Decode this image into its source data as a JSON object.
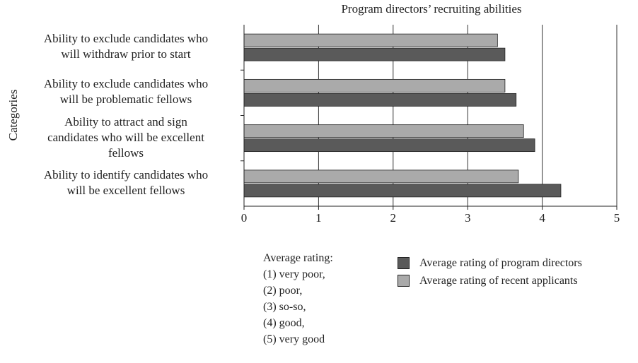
{
  "chart_data": {
    "type": "bar",
    "orientation": "horizontal",
    "title": "Program directors’ recruiting abilities",
    "ylabel": "Categories",
    "categories": [
      "Ability to exclude candidates who\nwill withdraw prior to start",
      "Ability to exclude candidates who\nwill be problematic fellows",
      "Ability to attract and sign\ncandidates who will be excellent\nfellows",
      "Ability to identify candidates who\nwill be excellent fellows"
    ],
    "series": [
      {
        "name": "Average rating of program directors",
        "color": "#5a5a5a",
        "values": [
          3.5,
          3.65,
          3.9,
          4.25
        ]
      },
      {
        "name": "Average rating of recent applicants",
        "color": "#aaaaaa",
        "values": [
          3.4,
          3.5,
          3.75,
          3.68
        ]
      }
    ],
    "xlim": [
      0,
      5
    ],
    "xticks": [
      0,
      1,
      2,
      3,
      4,
      5
    ],
    "grid": true,
    "legend": "bottom-right",
    "note": {
      "title": "Average rating:",
      "lines": [
        "(1)  very poor,",
        "(2)  poor,",
        "(3)  so-so,",
        "(4)  good,",
        "(5)  very good"
      ]
    }
  }
}
